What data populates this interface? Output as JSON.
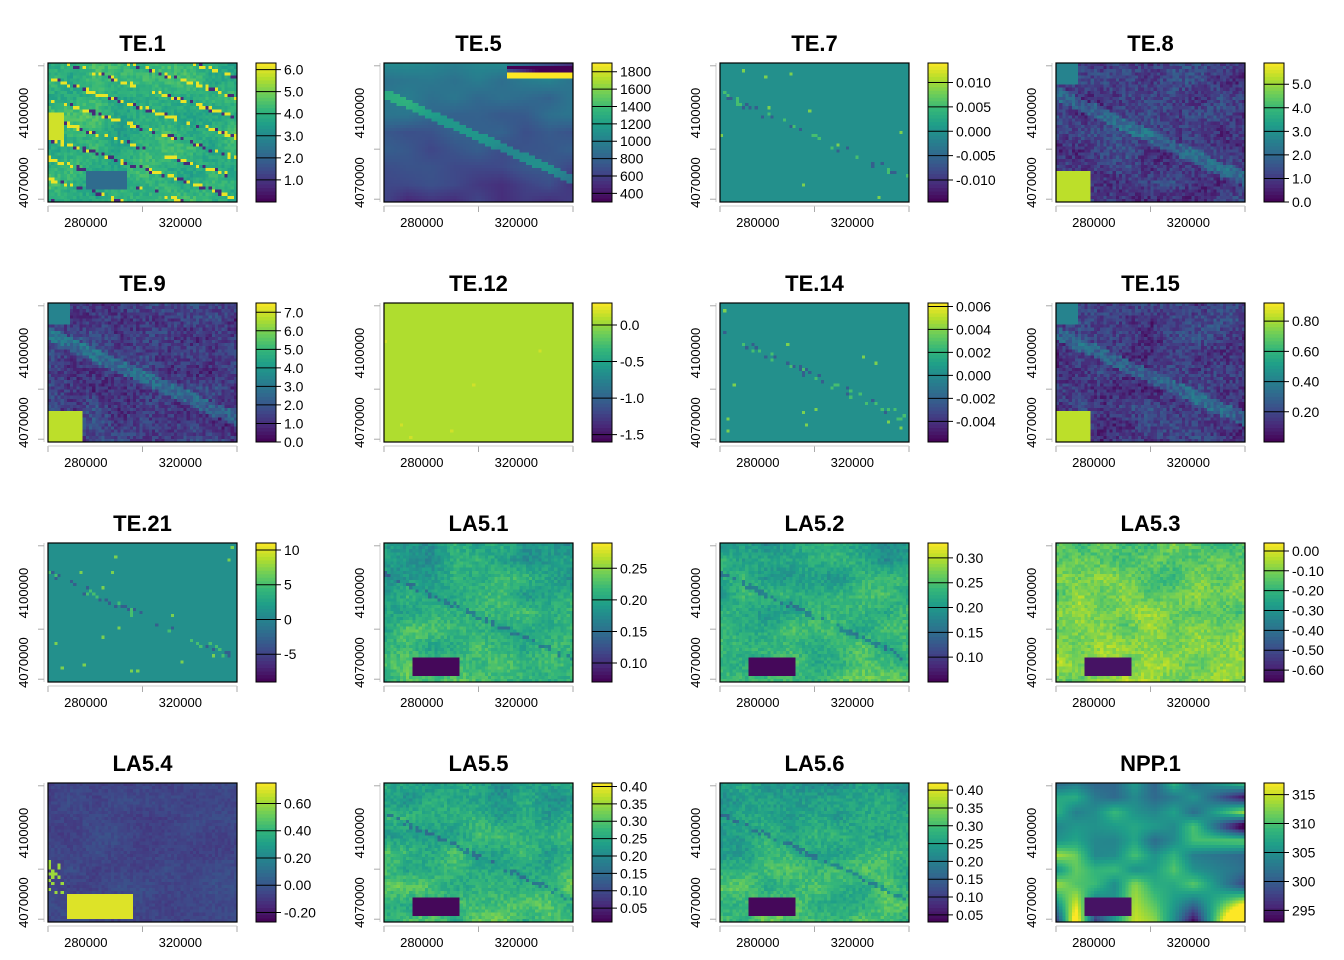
{
  "figure": {
    "layout": {
      "rows": 4,
      "cols": 4
    },
    "colormap": "viridis",
    "colors": [
      "#440154",
      "#482878",
      "#3e4a89",
      "#31688e",
      "#26828e",
      "#1f9e89",
      "#35b779",
      "#6ece58",
      "#b5de2b",
      "#fde725"
    ]
  },
  "chart_data": [
    {
      "type": "heatmap",
      "title": "TE.1",
      "xticks": [
        "280000",
        "320000"
      ],
      "yticks": [
        "4070000",
        "4100000"
      ],
      "legend_ticks": [
        "1.0",
        "2.0",
        "3.0",
        "4.0",
        "5.0",
        "6.0"
      ],
      "legend_range": [
        0,
        6.3
      ],
      "pattern": "stripes"
    },
    {
      "type": "heatmap",
      "title": "TE.5",
      "xticks": [
        "280000",
        "320000"
      ],
      "yticks": [
        "4070000",
        "4100000"
      ],
      "legend_ticks": [
        "400",
        "600",
        "800",
        "1000",
        "1200",
        "1400",
        "1600",
        "1800"
      ],
      "legend_range": [
        300,
        1900
      ],
      "pattern": "elevation"
    },
    {
      "type": "heatmap",
      "title": "TE.7",
      "xticks": [
        "280000",
        "320000"
      ],
      "yticks": [
        "4070000",
        "4100000"
      ],
      "legend_ticks": [
        "-0.010",
        "-0.005",
        "0.000",
        "0.005",
        "0.010"
      ],
      "legend_range": [
        -0.0145,
        0.014
      ],
      "pattern": "flat"
    },
    {
      "type": "heatmap",
      "title": "TE.8",
      "xticks": [
        "280000",
        "320000"
      ],
      "yticks": [
        "4070000",
        "4100000"
      ],
      "legend_ticks": [
        "0.0",
        "1.0",
        "2.0",
        "3.0",
        "4.0",
        "5.0"
      ],
      "legend_range": [
        0,
        5.9
      ],
      "pattern": "dark_noise"
    },
    {
      "type": "heatmap",
      "title": "TE.9",
      "xticks": [
        "280000",
        "320000"
      ],
      "yticks": [
        "4070000",
        "4100000"
      ],
      "legend_ticks": [
        "0.0",
        "1.0",
        "2.0",
        "3.0",
        "4.0",
        "5.0",
        "6.0",
        "7.0"
      ],
      "legend_range": [
        0,
        7.5
      ],
      "pattern": "dark_noise"
    },
    {
      "type": "heatmap",
      "title": "TE.12",
      "xticks": [
        "280000",
        "320000"
      ],
      "yticks": [
        "4070000",
        "4100000"
      ],
      "legend_ticks": [
        "-1.5",
        "-1.0",
        "-0.5",
        "0.0"
      ],
      "legend_range": [
        -1.6,
        0.3
      ],
      "pattern": "uniform"
    },
    {
      "type": "heatmap",
      "title": "TE.14",
      "xticks": [
        "280000",
        "320000"
      ],
      "yticks": [
        "4070000",
        "4100000"
      ],
      "legend_ticks": [
        "-0.004",
        "-0.002",
        "0.000",
        "0.002",
        "0.004",
        "0.006"
      ],
      "legend_range": [
        -0.0058,
        0.0063
      ],
      "pattern": "flat"
    },
    {
      "type": "heatmap",
      "title": "TE.15",
      "xticks": [
        "280000",
        "320000"
      ],
      "yticks": [
        "4070000",
        "4100000"
      ],
      "legend_ticks": [
        "0.20",
        "0.40",
        "0.60",
        "0.80"
      ],
      "legend_range": [
        0,
        0.92
      ],
      "pattern": "dark_noise"
    },
    {
      "type": "heatmap",
      "title": "TE.21",
      "xticks": [
        "280000",
        "320000"
      ],
      "yticks": [
        "4070000",
        "4100000"
      ],
      "legend_ticks": [
        "-5",
        "0",
        "5",
        "10"
      ],
      "legend_range": [
        -9,
        11
      ],
      "pattern": "flat"
    },
    {
      "type": "heatmap",
      "title": "LA5.1",
      "xticks": [
        "280000",
        "320000"
      ],
      "yticks": [
        "4070000",
        "4100000"
      ],
      "legend_ticks": [
        "0.10",
        "0.15",
        "0.20",
        "0.25"
      ],
      "legend_range": [
        0.07,
        0.29
      ],
      "pattern": "landsat"
    },
    {
      "type": "heatmap",
      "title": "LA5.2",
      "xticks": [
        "280000",
        "320000"
      ],
      "yticks": [
        "4070000",
        "4100000"
      ],
      "legend_ticks": [
        "0.10",
        "0.15",
        "0.20",
        "0.25",
        "0.30"
      ],
      "legend_range": [
        0.05,
        0.33
      ],
      "pattern": "landsat"
    },
    {
      "type": "heatmap",
      "title": "LA5.3",
      "xticks": [
        "280000",
        "320000"
      ],
      "yticks": [
        "4070000",
        "4100000"
      ],
      "legend_ticks": [
        "-0.60",
        "-0.50",
        "-0.40",
        "-0.30",
        "-0.20",
        "-0.10",
        "0.00"
      ],
      "legend_range": [
        -0.66,
        0.04
      ],
      "pattern": "landsat_bright"
    },
    {
      "type": "heatmap",
      "title": "LA5.4",
      "xticks": [
        "280000",
        "320000"
      ],
      "yticks": [
        "4070000",
        "4100000"
      ],
      "legend_ticks": [
        "-0.20",
        "0.00",
        "0.20",
        "0.40",
        "0.60"
      ],
      "legend_range": [
        -0.27,
        0.75
      ],
      "pattern": "water_bright"
    },
    {
      "type": "heatmap",
      "title": "LA5.5",
      "xticks": [
        "280000",
        "320000"
      ],
      "yticks": [
        "4070000",
        "4100000"
      ],
      "legend_ticks": [
        "0.05",
        "0.10",
        "0.15",
        "0.20",
        "0.25",
        "0.30",
        "0.35",
        "0.40"
      ],
      "legend_range": [
        0.01,
        0.41
      ],
      "pattern": "landsat"
    },
    {
      "type": "heatmap",
      "title": "LA5.6",
      "xticks": [
        "280000",
        "320000"
      ],
      "yticks": [
        "4070000",
        "4100000"
      ],
      "legend_ticks": [
        "0.05",
        "0.10",
        "0.15",
        "0.20",
        "0.25",
        "0.30",
        "0.35",
        "0.40"
      ],
      "legend_range": [
        0.03,
        0.42
      ],
      "pattern": "landsat"
    },
    {
      "type": "heatmap",
      "title": "NPP.1",
      "xticks": [
        "280000",
        "320000"
      ],
      "yticks": [
        "4070000",
        "4100000"
      ],
      "legend_ticks": [
        "295",
        "300",
        "305",
        "310",
        "315"
      ],
      "legend_range": [
        293,
        317
      ],
      "pattern": "smooth"
    }
  ]
}
